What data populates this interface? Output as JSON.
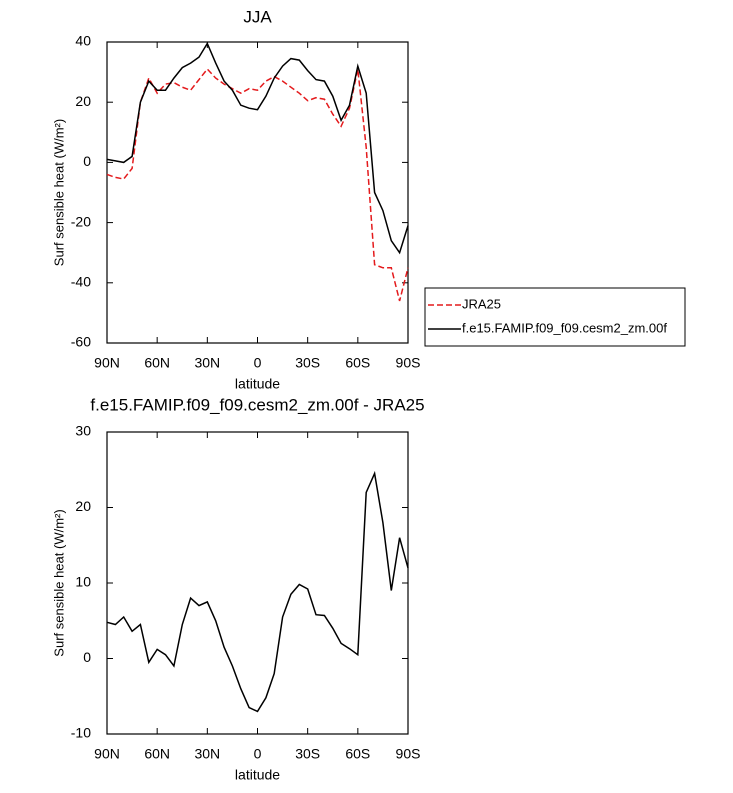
{
  "chart_data": [
    {
      "type": "line",
      "title": "JJA",
      "y_label": "Surf sensible heat (W/m²)",
      "x_label": "latitude",
      "x": [
        90,
        85,
        80,
        75,
        70,
        65,
        60,
        55,
        50,
        45,
        40,
        35,
        30,
        25,
        20,
        15,
        10,
        5,
        0,
        -5,
        -10,
        -15,
        -20,
        -25,
        -30,
        -35,
        -40,
        -45,
        -50,
        -55,
        -60,
        -65,
        -70,
        -75,
        -80,
        -85,
        -90
      ],
      "xlim": [
        90,
        -90
      ],
      "xticks": [
        {
          "value": 90,
          "label": "90N"
        },
        {
          "value": 60,
          "label": "60N"
        },
        {
          "value": 30,
          "label": "30N"
        },
        0,
        {
          "value": -30,
          "label": "30S"
        },
        {
          "value": -60,
          "label": "60S"
        },
        {
          "value": -90,
          "label": "90S"
        }
      ],
      "ylim": [
        -60,
        40
      ],
      "yticks": [
        40,
        20,
        0,
        -20,
        -40,
        -60
      ],
      "legend": "right",
      "series": [
        {
          "name": "JRA25",
          "color": "#e41a1c",
          "line_style": "dashed",
          "values": [
            -4,
            -5,
            -5.5,
            -2,
            20,
            28,
            23,
            26,
            26.5,
            25,
            24,
            27.5,
            31,
            28,
            26,
            24.5,
            23,
            24.5,
            24,
            27,
            28.5,
            27,
            25,
            23,
            20.5,
            21.5,
            21,
            16,
            12,
            18,
            31,
            5,
            -34,
            -35,
            -35,
            -46,
            -35
          ]
        },
        {
          "name": "f.e15.FAMIP.f09_f09.cesm2_zm.00f",
          "color": "#000000",
          "line_style": "solid",
          "values": [
            1,
            0.5,
            0,
            2,
            20,
            27,
            24,
            24,
            28,
            31.5,
            33,
            35,
            39.5,
            33,
            27,
            24,
            19,
            18,
            17.5,
            22,
            28,
            32,
            34.5,
            34,
            30.5,
            27.5,
            27,
            22,
            14,
            19,
            32,
            23,
            -10,
            -16,
            -26,
            -30,
            -21
          ]
        }
      ]
    },
    {
      "type": "line",
      "title": "f.e15.FAMIP.f09_f09.cesm2_zm.00f - JRA25",
      "y_label": "Surf sensible heat (W/m²)",
      "x_label": "latitude",
      "x": [
        90,
        85,
        80,
        75,
        70,
        65,
        60,
        55,
        50,
        45,
        40,
        35,
        30,
        25,
        20,
        15,
        10,
        5,
        0,
        -5,
        -10,
        -15,
        -20,
        -25,
        -30,
        -35,
        -40,
        -45,
        -50,
        -55,
        -60,
        -65,
        -70,
        -75,
        -80,
        -85,
        -90
      ],
      "xlim": [
        90,
        -90
      ],
      "xticks": [
        {
          "value": 90,
          "label": "90N"
        },
        {
          "value": 60,
          "label": "60N"
        },
        {
          "value": 30,
          "label": "30N"
        },
        0,
        {
          "value": -30,
          "label": "30S"
        },
        {
          "value": -60,
          "label": "60S"
        },
        {
          "value": -90,
          "label": "90S"
        }
      ],
      "ylim": [
        -10,
        30
      ],
      "yticks": [
        30,
        20,
        10,
        0,
        -10
      ],
      "series": [
        {
          "color": "#000000",
          "line_style": "solid",
          "values": [
            4.8,
            4.5,
            5.5,
            3.6,
            4.5,
            -0.5,
            1.2,
            0.5,
            -1,
            4.5,
            8,
            7,
            7.5,
            5,
            1.5,
            -1,
            -4,
            -6.5,
            -7,
            -5.2,
            -2,
            5.5,
            8.5,
            9.8,
            9.2,
            5.8,
            5.7,
            4,
            2,
            1.3,
            0.5,
            22,
            24.5,
            18,
            9,
            16,
            12
          ]
        }
      ]
    }
  ]
}
